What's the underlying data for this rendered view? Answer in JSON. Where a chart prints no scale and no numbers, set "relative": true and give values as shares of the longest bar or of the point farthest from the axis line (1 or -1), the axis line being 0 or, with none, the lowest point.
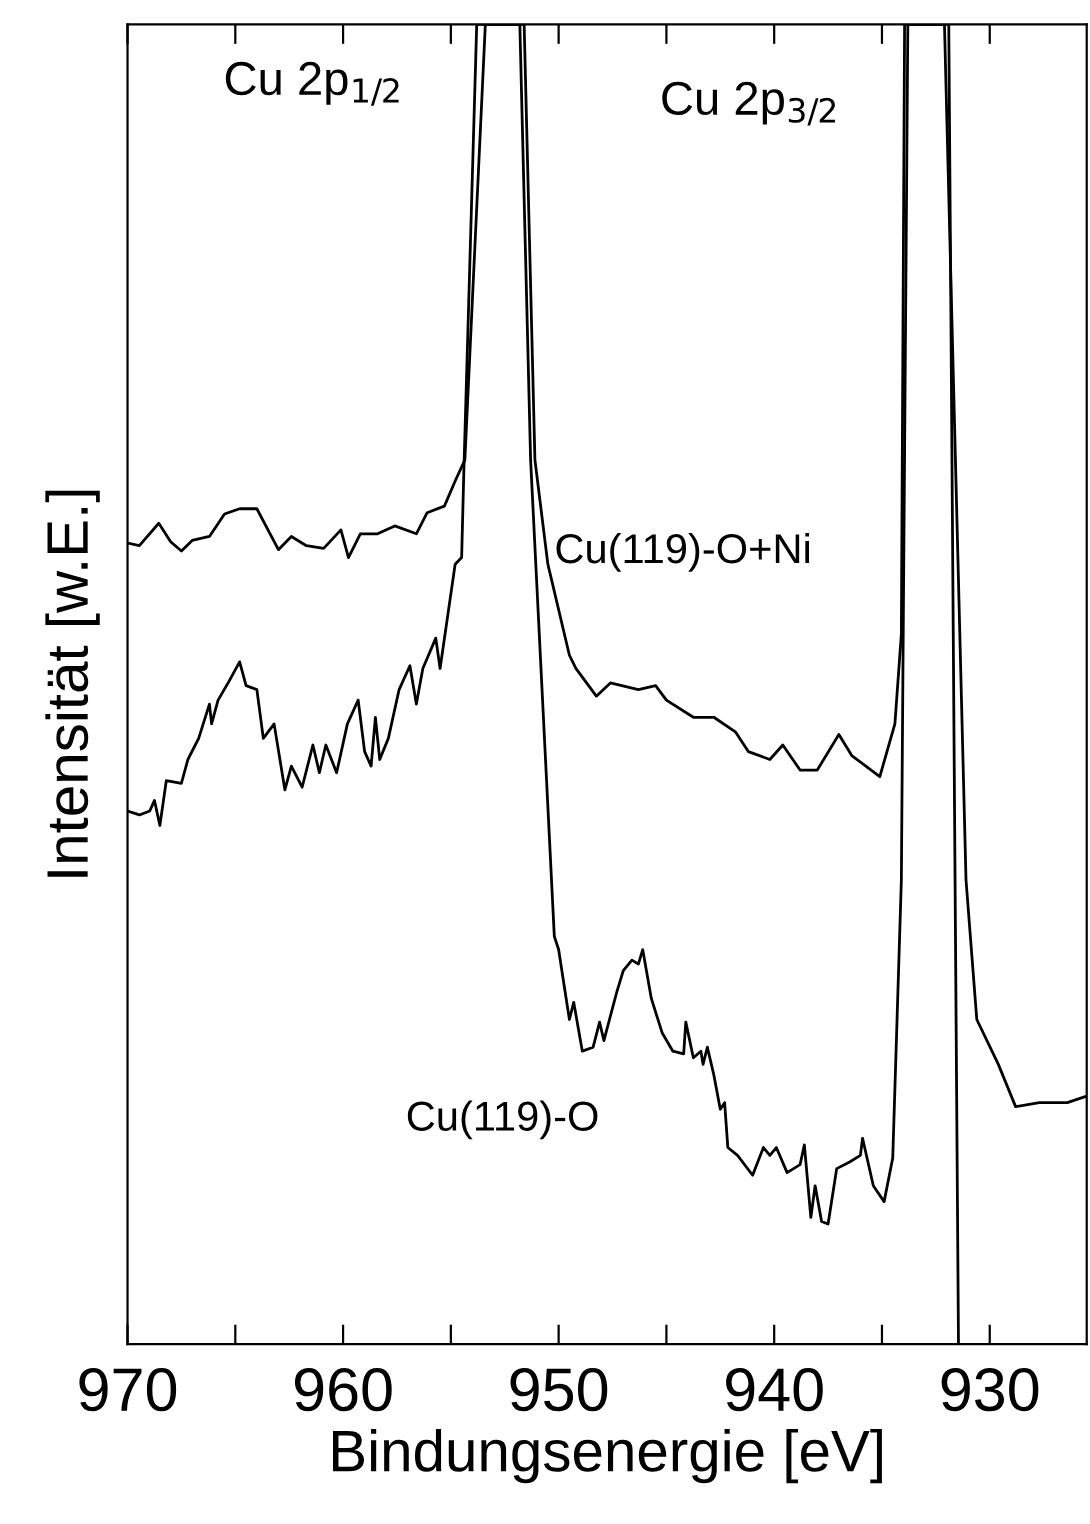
{
  "chart_data": {
    "type": "line",
    "relative": true,
    "xlabel": "Bindungsenergie [eV]",
    "ylabel": "Intensität [w.E.]",
    "annotations": [
      "Cu 2p$_{1/2}$",
      "Cu 2p$_{3/2}$"
    ],
    "xlim": [
      970,
      925.5
    ],
    "xticks": [
      970,
      {
        "value": 965,
        "label": null
      },
      960,
      {
        "value": 955,
        "label": null
      },
      950,
      {
        "value": 945,
        "label": null
      },
      940,
      {
        "value": 935,
        "label": null
      },
      930
    ],
    "grid": false,
    "legend": false,
    "marker": "none",
    "line_style": "solid",
    "series": [
      {
        "name": "Cu(119)-O+Ni",
        "color": "#000000",
        "x": [
          970.0,
          969.45,
          968.55,
          968.0,
          967.5,
          967.0,
          966.2,
          965.5,
          964.8,
          964.0,
          963.0,
          962.4,
          961.7,
          960.9,
          960.1,
          959.75,
          959.2,
          958.4,
          957.6,
          956.6,
          956.1,
          955.3,
          954.8,
          954.35,
          953.4,
          951.6,
          951.1,
          950.5,
          949.5,
          949.2,
          948.25,
          947.6,
          946.3,
          945.5,
          945.0,
          943.75,
          942.8,
          941.8,
          941.2,
          940.2,
          939.6,
          938.8,
          938.0,
          937.0,
          936.4,
          935.1,
          934.4,
          934.1,
          933.95,
          931.9,
          931.45
        ],
        "values": [
          0.607,
          0.605,
          0.622,
          0.608,
          0.601,
          0.609,
          0.612,
          0.629,
          0.633,
          0.633,
          0.602,
          0.612,
          0.605,
          0.603,
          0.617,
          0.596,
          0.614,
          0.614,
          0.62,
          0.614,
          0.63,
          0.635,
          0.654,
          0.67,
          1.0,
          1.0,
          0.67,
          0.591,
          0.522,
          0.512,
          0.491,
          0.501,
          0.496,
          0.499,
          0.488,
          0.475,
          0.475,
          0.464,
          0.449,
          0.443,
          0.454,
          0.435,
          0.435,
          0.462,
          0.446,
          0.43,
          0.47,
          0.538,
          1.0,
          1.0,
          0.0
        ]
      },
      {
        "name": "Cu(119)-O",
        "color": "#000000",
        "x": [
          970.0,
          969.45,
          968.97,
          968.75,
          968.5,
          968.2,
          967.5,
          967.2,
          966.7,
          966.2,
          966.1,
          965.8,
          965.3,
          964.8,
          964.5,
          964.0,
          963.7,
          963.2,
          962.7,
          962.4,
          961.9,
          961.4,
          961.1,
          960.8,
          960.3,
          959.8,
          959.3,
          959.0,
          958.7,
          958.5,
          958.3,
          957.9,
          957.4,
          956.9,
          956.6,
          956.3,
          955.7,
          955.5,
          954.8,
          954.5,
          954.4,
          953.8,
          951.8,
          951.3,
          950.2,
          950.0,
          949.7,
          949.5,
          949.3,
          948.9,
          948.4,
          948.1,
          947.9,
          947.3,
          947.0,
          946.6,
          946.3,
          946.1,
          945.7,
          945.2,
          944.7,
          944.2,
          944.1,
          943.75,
          943.4,
          943.3,
          943.1,
          942.8,
          942.5,
          942.3,
          942.15,
          941.7,
          941.0,
          940.5,
          940.2,
          939.9,
          939.4,
          938.8,
          938.6,
          938.3,
          938.1,
          937.8,
          937.5,
          937.1,
          936.5,
          936.0,
          935.9,
          935.4,
          934.9,
          934.5,
          934.3,
          934.1,
          933.8,
          932.1,
          931.1,
          930.6,
          929.6,
          928.8,
          927.7,
          926.4,
          925.5
        ],
        "values": [
          0.404,
          0.401,
          0.404,
          0.412,
          0.393,
          0.427,
          0.425,
          0.443,
          0.459,
          0.485,
          0.47,
          0.488,
          0.502,
          0.517,
          0.499,
          0.496,
          0.459,
          0.47,
          0.42,
          0.438,
          0.422,
          0.454,
          0.433,
          0.454,
          0.433,
          0.47,
          0.488,
          0.449,
          0.438,
          0.475,
          0.443,
          0.459,
          0.496,
          0.514,
          0.485,
          0.512,
          0.535,
          0.512,
          0.591,
          0.596,
          0.66,
          1.0,
          1.0,
          0.67,
          0.309,
          0.299,
          0.267,
          0.246,
          0.259,
          0.222,
          0.225,
          0.244,
          0.23,
          0.267,
          0.283,
          0.291,
          0.288,
          0.299,
          0.262,
          0.236,
          0.222,
          0.22,
          0.244,
          0.217,
          0.222,
          0.212,
          0.225,
          0.204,
          0.178,
          0.183,
          0.149,
          0.143,
          0.128,
          0.149,
          0.143,
          0.149,
          0.13,
          0.136,
          0.151,
          0.096,
          0.12,
          0.093,
          0.091,
          0.133,
          0.138,
          0.143,
          0.156,
          0.12,
          0.108,
          0.141,
          0.246,
          0.3515,
          1.0,
          1.0,
          0.3515,
          0.246,
          0.212,
          0.18,
          0.183,
          0.183,
          0.188
        ]
      }
    ]
  }
}
